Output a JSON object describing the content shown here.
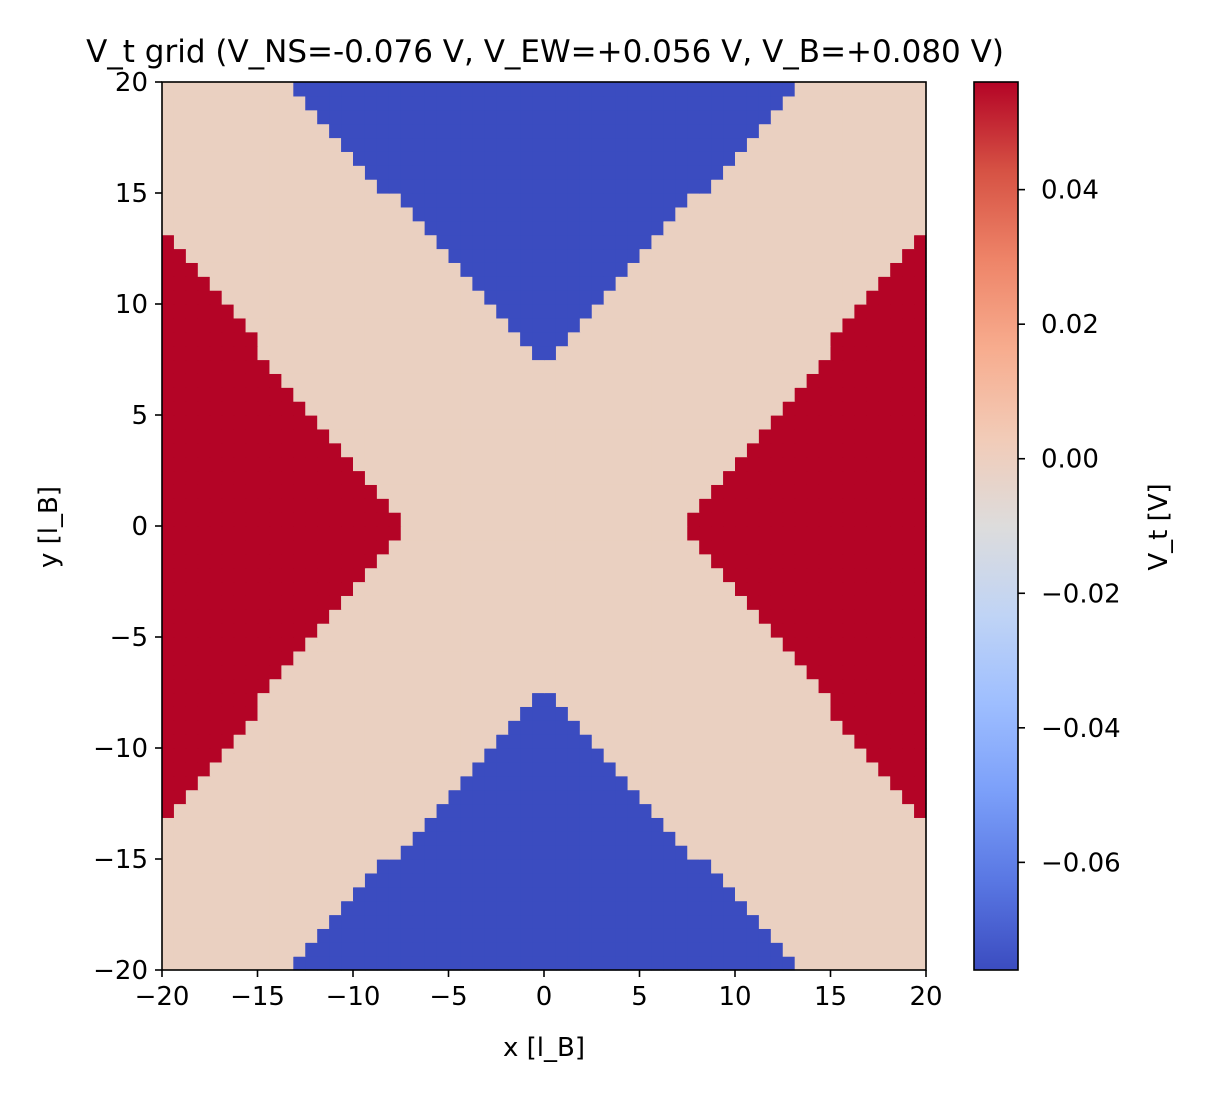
{
  "chart_data": {
    "type": "heatmap",
    "title": "V_t grid (V_NS=-0.076 V, V_EW=+0.056 V, V_B=+0.080 V)",
    "xlabel": "x [l_B]",
    "ylabel": "y [l_B]",
    "xlim": [
      -20,
      20
    ],
    "ylim": [
      -20,
      20
    ],
    "x_ticks": [
      -20,
      -15,
      -10,
      -5,
      0,
      5,
      10,
      15,
      20
    ],
    "y_ticks": [
      -20,
      -15,
      -10,
      -5,
      0,
      5,
      10,
      15,
      20
    ],
    "x_tick_labels": [
      "−20",
      "−15",
      "−10",
      "−5",
      "0",
      "5",
      "10",
      "15",
      "20"
    ],
    "y_tick_labels": [
      "−20",
      "−15",
      "−10",
      "−5",
      "0",
      "5",
      "10",
      "15",
      "20"
    ],
    "grid": false,
    "colormap": "coolwarm",
    "colorbar": {
      "label": "V_t [V]",
      "vmin": -0.076,
      "vmax": 0.056,
      "ticks": [
        0.04,
        0.02,
        0.0,
        -0.02,
        -0.04,
        -0.06
      ],
      "tick_labels": [
        "0.04",
        "0.02",
        "0.00",
        "−0.02",
        "−0.04",
        "−0.06"
      ],
      "colors": [
        "#3b4cc0",
        "#5977e3",
        "#7b9ff9",
        "#9ebeff",
        "#c0d4f5",
        "#dddcdc",
        "#f2cbb7",
        "#f7ac8e",
        "#ee8468",
        "#d65244",
        "#b40426"
      ]
    },
    "grid_cells": {
      "nx": 64,
      "ny": 64,
      "regions": [
        {
          "name": "V_NS",
          "value": -0.076,
          "color": "#3b4cc0",
          "location": "top and bottom wedges"
        },
        {
          "name": "V_EW",
          "value": 0.056,
          "color": "#b40426",
          "location": "left and right wedges"
        },
        {
          "name": "background",
          "value": 0.0,
          "color": "#ead0c1",
          "location": "X-shaped channel"
        }
      ],
      "ns_wedge_apex_y": 7.0,
      "ns_wedge_halfwidth_at_edge": 13.2,
      "ew_wedge_apex_x": 7.0,
      "ew_wedge_halfheight_at_edge": 13.2
    }
  }
}
